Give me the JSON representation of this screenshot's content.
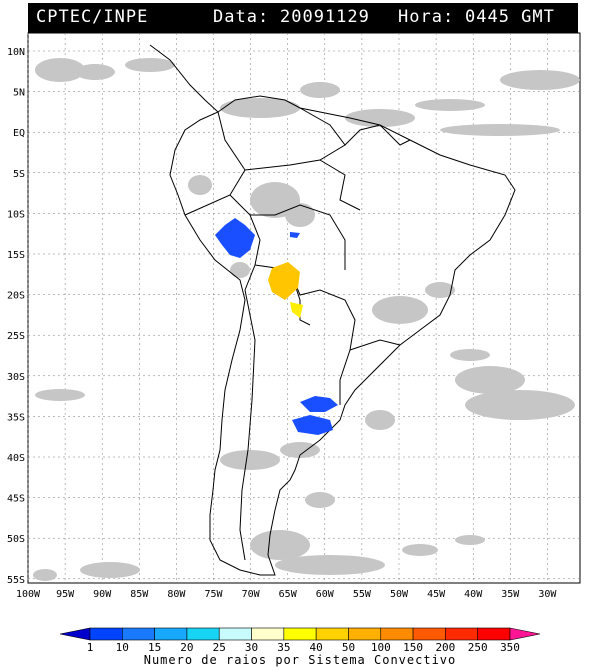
{
  "header": {
    "source": "CPTEC/INPE",
    "date_label": "Data:",
    "date_value": "20091129",
    "time_label": "Hora:",
    "time_value": "0445 GMT"
  },
  "axes": {
    "lat_labels": [
      "10N",
      "5N",
      "EQ",
      "5S",
      "10S",
      "15S",
      "20S",
      "25S",
      "30S",
      "35S",
      "40S",
      "45S",
      "50S",
      "55S"
    ],
    "lon_labels": [
      "100W",
      "95W",
      "90W",
      "85W",
      "80W",
      "75W",
      "70W",
      "65W",
      "60W",
      "55W",
      "50W",
      "45W",
      "40W",
      "35W",
      "30W"
    ]
  },
  "legend": {
    "title": "Numero de raios por Sistema Convectivo",
    "ticks": [
      "1",
      "10",
      "15",
      "20",
      "25",
      "30",
      "35",
      "40",
      "50",
      "100",
      "150",
      "200",
      "250",
      "350"
    ],
    "colors": [
      "#0000cc",
      "#0044ff",
      "#1a7aff",
      "#18a8ff",
      "#17d4f5",
      "#c8fbfb",
      "#ffffcc",
      "#ffff00",
      "#ffd200",
      "#ffb000",
      "#ff8c00",
      "#ff5a00",
      "#ff2a00",
      "#ff0000",
      "#ff1493"
    ]
  },
  "map_colors": {
    "cloud_gray": "#c6c6c6",
    "system_blue": "#1a4fff",
    "system_yellow": "#ffc600",
    "system_lightyellow": "#ffee00"
  }
}
